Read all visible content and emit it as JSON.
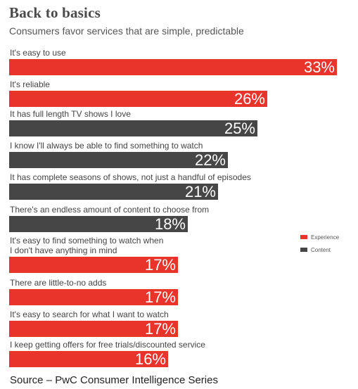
{
  "chart_data": {
    "type": "bar",
    "orientation": "horizontal",
    "title": "Back to basics",
    "subtitle": "Consumers favor services that are simple, predictable",
    "value_suffix": "%",
    "xlim": [
      0,
      33
    ],
    "grid": false,
    "legend_placement": "right",
    "legend": [
      {
        "name": "Experience",
        "color": "#e8342a"
      },
      {
        "name": "Content",
        "color": "#464646"
      }
    ],
    "categories": [
      "It's easy to use",
      "It's reliable",
      "It has full length TV shows I love",
      "I know I'll always be able to find something to watch",
      "It has complete seasons of shows, not just a handful of episodes",
      "There's an endless amount of content to choose from",
      "It's easy to find something to watch when\nI don't have anything in mind",
      "There are little-to-no adds",
      "It's easy to search for what I want to watch",
      "I keep getting offers for free trials/discounted service"
    ],
    "values": [
      33,
      26,
      25,
      22,
      21,
      18,
      17,
      17,
      17,
      16
    ],
    "value_labels": [
      "33%",
      "26%",
      "25%",
      "22%",
      "21%",
      "18%",
      "17%",
      "17%",
      "17%",
      "16%"
    ],
    "groups": [
      "Experience",
      "Experience",
      "Content",
      "Content",
      "Content",
      "Content",
      "Experience",
      "Experience",
      "Experience",
      "Experience"
    ]
  },
  "source": "Source – PwC Consumer Intelligence Series"
}
